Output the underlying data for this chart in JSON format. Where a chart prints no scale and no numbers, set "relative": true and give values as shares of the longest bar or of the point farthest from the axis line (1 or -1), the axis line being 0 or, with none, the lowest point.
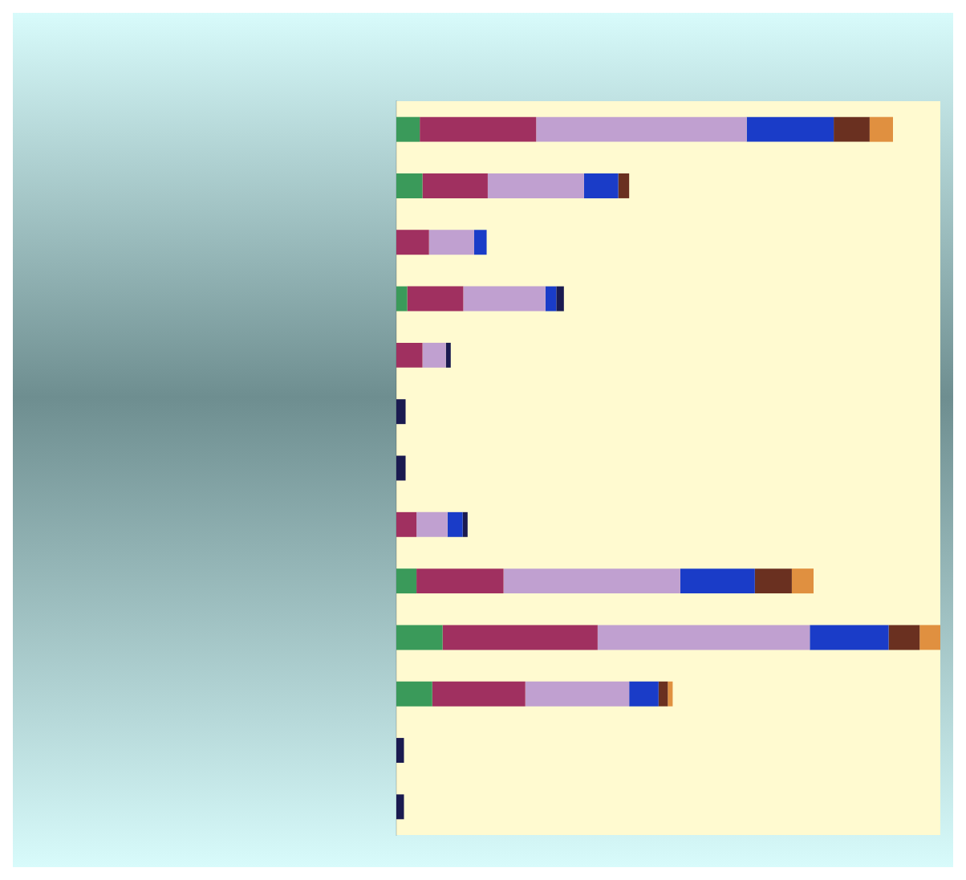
{
  "chart_data": {
    "type": "bar",
    "orientation": "horizontal",
    "stacked": true,
    "relative": true,
    "categories": [
      null,
      null,
      null,
      null,
      null,
      null,
      null,
      null,
      null,
      null,
      null,
      null,
      null
    ],
    "series": [
      {
        "color": "#3a9a5a",
        "values": [
          0.043,
          0.048,
          0,
          0.02,
          0,
          0,
          0,
          0,
          0.037,
          0.085,
          0.066,
          0,
          0
        ]
      },
      {
        "color": "#a03060",
        "values": [
          0.214,
          0.12,
          0.06,
          0.103,
          0.048,
          0,
          0,
          0.037,
          0.16,
          0.285,
          0.171,
          0,
          0
        ]
      },
      {
        "color": "#c0a0d0",
        "values": [
          0.387,
          0.177,
          0.083,
          0.151,
          0.043,
          0,
          0,
          0.057,
          0.325,
          0.39,
          0.191,
          0,
          0
        ]
      },
      {
        "color": "#1a3cc8",
        "values": [
          0.16,
          0.063,
          0.023,
          0.02,
          0,
          0,
          0,
          0.028,
          0.137,
          0.145,
          0.054,
          0,
          0
        ]
      },
      {
        "color": "#1a1a50",
        "values": [
          0,
          0,
          0,
          0.014,
          0.009,
          0.017,
          0.017,
          0.009,
          0,
          0,
          0,
          0.014,
          0.014
        ]
      },
      {
        "color": "#6a3020",
        "values": [
          0.066,
          0.02,
          0,
          0,
          0,
          0,
          0,
          0,
          0.068,
          0.057,
          0.017,
          0,
          0
        ]
      },
      {
        "color": "#e09040",
        "values": [
          0.043,
          0,
          0,
          0,
          0,
          0,
          0,
          0,
          0.04,
          0.038,
          0.009,
          0,
          0
        ]
      }
    ]
  }
}
